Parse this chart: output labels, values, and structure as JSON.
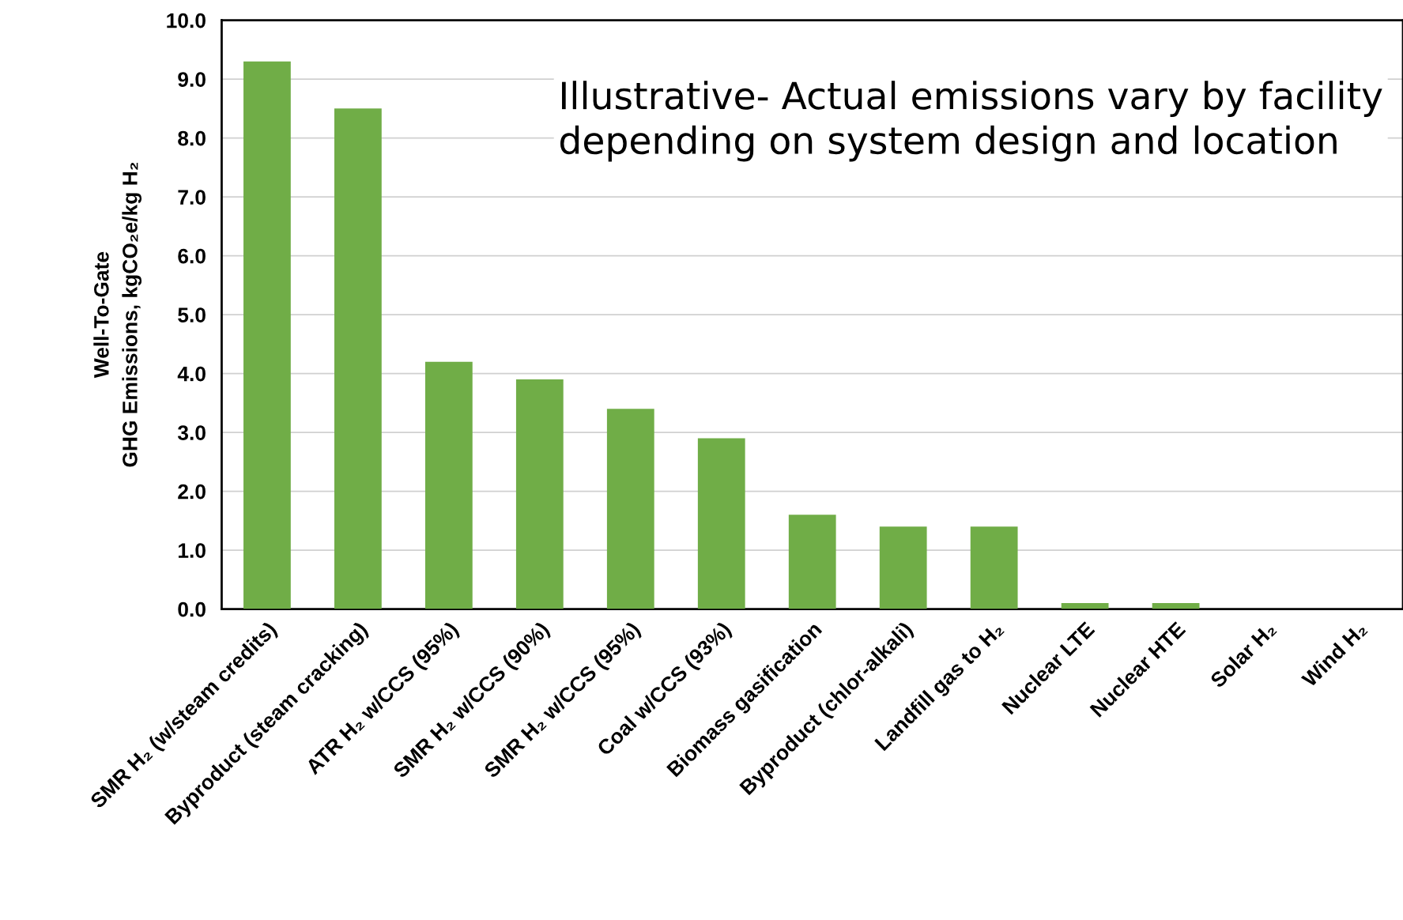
{
  "chart_data": {
    "type": "bar",
    "ylabel": "Well-To-Gate\nGHG Emissions, kgCO₂e/kg H₂",
    "categories": [
      "SMR H₂ (w/steam credits)",
      "Byproduct (steam cracking)",
      "ATR H₂ w/CCS (95%)",
      "SMR H₂ w/CCS (90%)",
      "SMR H₂ w/CCS (95%)",
      "Coal w/CCS (93%)",
      "Biomass gasification",
      "Byproduct (chlor-alkali)",
      "Landfill gas to H₂",
      "Nuclear LTE",
      "Nuclear HTE",
      "Solar H₂",
      "Wind H₂"
    ],
    "values": [
      9.3,
      8.5,
      4.2,
      3.9,
      3.4,
      2.9,
      1.6,
      1.4,
      1.4,
      0.1,
      0.1,
      0,
      0
    ],
    "color": "#70ad47",
    "ylim": [
      0,
      10
    ],
    "yticks": [
      {
        "value": 0,
        "label": "0.0"
      },
      {
        "value": 1,
        "label": "1.0"
      },
      {
        "value": 2,
        "label": "2.0"
      },
      {
        "value": 3,
        "label": "3.0"
      },
      {
        "value": 4,
        "label": "4.0"
      },
      {
        "value": 5,
        "label": "5.0"
      },
      {
        "value": 6,
        "label": "6.0"
      },
      {
        "value": 7,
        "label": "7.0"
      },
      {
        "value": 8,
        "label": "8.0"
      },
      {
        "value": 9,
        "label": "9.0"
      },
      {
        "value": 10,
        "label": "10.0"
      }
    ],
    "grid": "y",
    "annotations": [
      "Illustrative- Actual emissions vary by facility\ndepending on system design and location"
    ]
  }
}
